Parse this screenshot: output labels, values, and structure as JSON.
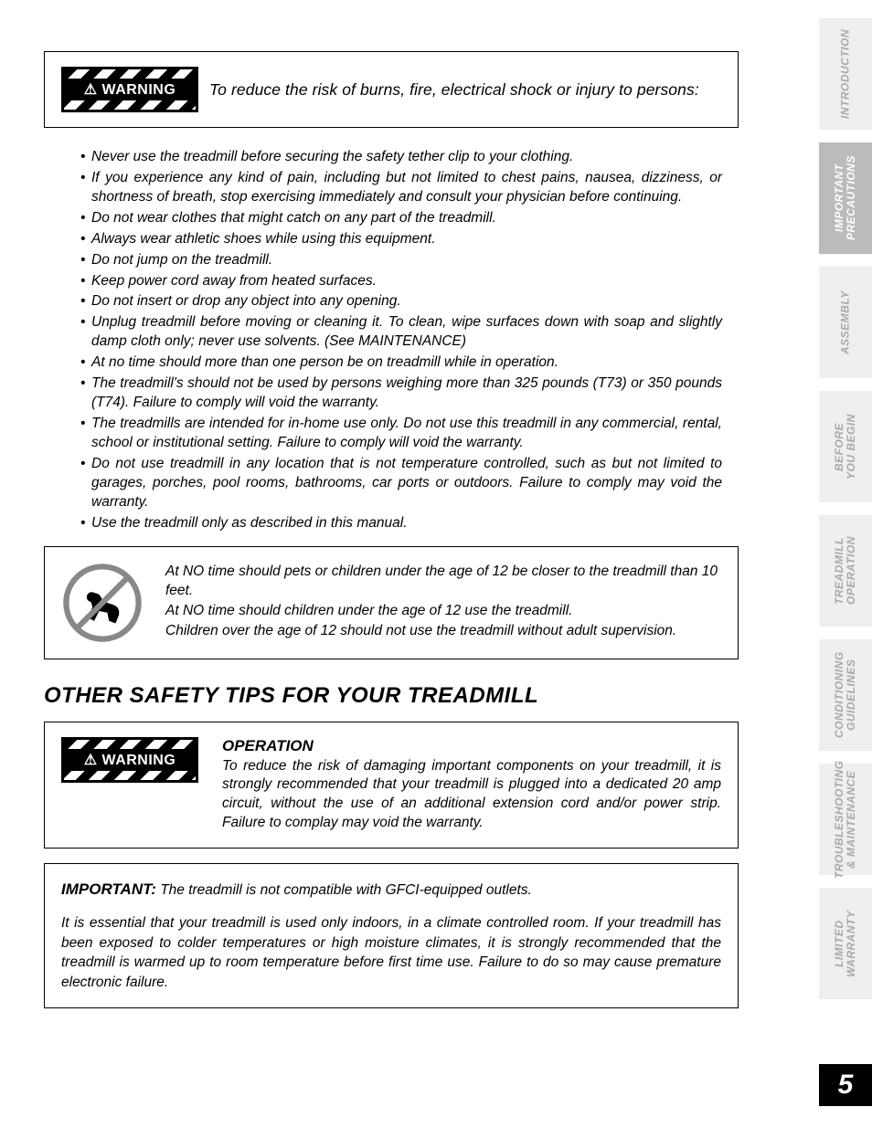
{
  "warning_label": "⚠ WARNING",
  "warning1": {
    "title_text": "To reduce the risk of burns, fire, electrical shock or injury to persons:",
    "bullets": [
      "Never use the treadmill before securing the safety tether clip to your clothing.",
      "If you experience any kind of pain, including but not limited to chest pains, nausea, dizziness, or shortness of breath, stop exercising immediately and consult your physician before continuing.",
      "Do not wear clothes that might catch on any part of the treadmill.",
      "Always wear athletic shoes while using this equipment.",
      "Do not jump on the treadmill.",
      "Keep power cord away from heated surfaces.",
      "Do not insert or drop any object into any opening.",
      "Unplug treadmill before moving or cleaning it.  To clean, wipe surfaces down with soap and slightly damp cloth only; never use solvents. (See MAINTENANCE)",
      "At no time should more than one person be on treadmill while in operation.",
      "The treadmill's should not be used by persons weighing more than 325 pounds (T73) or 350 pounds (T74). Failure to comply will void the warranty.",
      "The treadmills are intended for in-home use only. Do not use this treadmill in any commercial, rental, school or institutional setting. Failure to comply will void the warranty.",
      "Do not use treadmill in any location that is not temperature controlled, such as but not limited to garages, porches, pool rooms, bathrooms, car ports or outdoors. Failure to comply may void the warranty.",
      "Use the treadmill only as described in this manual."
    ]
  },
  "pet_warning": {
    "line1": "At NO time should pets or children under the age of 12 be closer to the treadmill than 10 feet.",
    "line2": "At NO time should children under the age of 12 use the treadmill.",
    "line3": "Children over the age of 12 should not use the treadmill without adult supervision."
  },
  "section_title": "OTHER SAFETY TIPS FOR YOUR TREADMILL",
  "operation": {
    "heading": "OPERATION",
    "body": "To reduce the risk of damaging important components on your treadmill, it is strongly recommended that your treadmill is plugged into a dedicated 20 amp circuit, without the use of an additional extension cord and/or power strip. Failure to complay may void the warranty."
  },
  "important": {
    "label": "IMPORTANT:",
    "p1": "The treadmill is not compatible with GFCI-equipped outlets.",
    "p2": "It is essential that your treadmill is used only indoors, in a climate controlled room. If your treadmill has been exposed to colder temperatures or high moisture climates, it is strongly recommended that the treadmill is warmed up to room temperature before first time use. Failure to do so may cause premature electronic failure."
  },
  "tabs": [
    "INTRODUCTION",
    "IMPORTANT\nPRECAUTIONS",
    "ASSEMBLY",
    "BEFORE\nYOU BEGIN",
    "TREADMILL\nOPERATION",
    "CONDITIONING\nGUIDELINES",
    "TROUBLESHOOTING\n& MAINTENANCE",
    "LIMITED\nWARRANTY"
  ],
  "active_tab_index": 1,
  "page_number": "5",
  "weight_limits": {
    "T73_lbs": 325,
    "T74_lbs": 350
  },
  "circuit_amps": 20,
  "child_age_threshold": 12,
  "child_distance_ft": 10,
  "colors": {
    "tab_bg": "#f0eeef",
    "tab_text": "#a9a7a8",
    "tab_active_bg": "#bcbabb",
    "tab_active_text": "#ffffff",
    "page_bg": "#ffffff",
    "text": "#000000",
    "pagenum_bg": "#000000"
  }
}
